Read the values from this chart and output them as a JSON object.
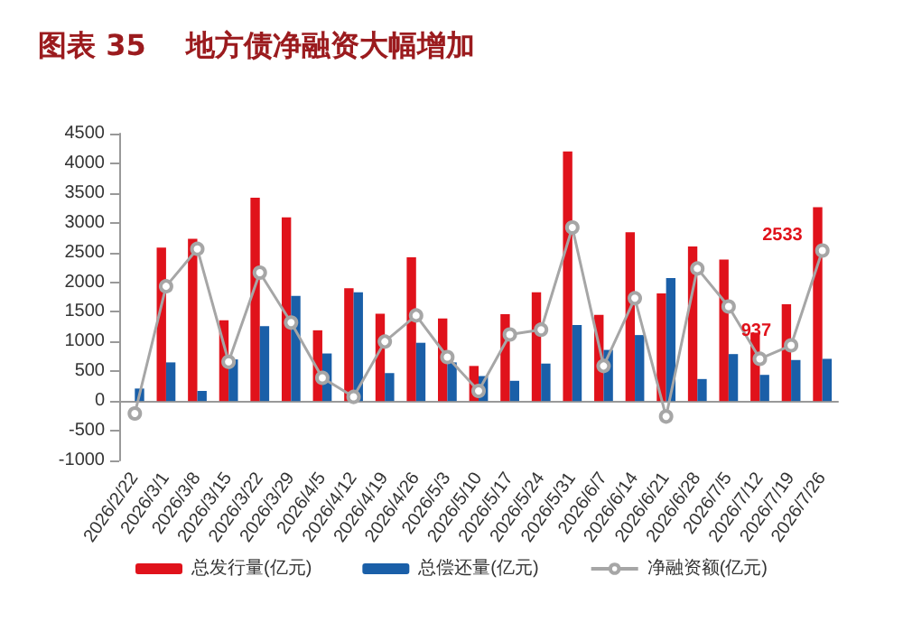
{
  "chart_data": {
    "type": "bar",
    "title": "图表 35    地方债净融资大幅增加",
    "categories": [
      "2026/2/22",
      "2026/3/1",
      "2026/3/8",
      "2026/3/15",
      "2026/3/22",
      "2026/3/29",
      "2026/4/5",
      "2026/4/12",
      "2026/4/19",
      "2026/4/26",
      "2026/5/3",
      "2026/5/10",
      "2026/5/17",
      "2026/5/24",
      "2026/5/31",
      "2026/6/7",
      "2026/6/14",
      "2026/6/21",
      "2026/6/28",
      "2026/7/5",
      "2026/7/12",
      "2026/7/19",
      "2026/7/26"
    ],
    "series": [
      {
        "name": "总发行量(亿元)",
        "color": "#e0121b",
        "values": [
          0,
          2580,
          2730,
          1360,
          3420,
          3090,
          1190,
          1900,
          1470,
          2420,
          1390,
          590,
          1460,
          1830,
          4200,
          1450,
          2840,
          1810,
          2600,
          2380,
          1150,
          1630,
          3260
        ]
      },
      {
        "name": "总偿还量(亿元)",
        "color": "#1a5fa8",
        "values": [
          210,
          650,
          170,
          700,
          1260,
          1770,
          800,
          1830,
          470,
          980,
          650,
          420,
          340,
          630,
          1280,
          860,
          1110,
          2070,
          370,
          790,
          440,
          690,
          710
        ]
      },
      {
        "name": "净融资额(亿元)",
        "type": "line",
        "color": "#a6a6a6",
        "marker": "circle",
        "values": [
          -210,
          1930,
          2560,
          660,
          2160,
          1320,
          390,
          70,
          1000,
          1440,
          740,
          170,
          1120,
          1200,
          2920,
          590,
          1730,
          -260,
          2230,
          1590,
          710,
          937,
          2533
        ],
        "value_labels": [
          null,
          null,
          null,
          null,
          null,
          null,
          null,
          null,
          null,
          null,
          null,
          null,
          null,
          null,
          null,
          null,
          null,
          null,
          null,
          null,
          null,
          "937",
          "2533"
        ]
      }
    ],
    "ylim": [
      -1000,
      4500
    ],
    "yticks": [
      -1000,
      -500,
      0,
      500,
      1000,
      1500,
      2000,
      2500,
      3000,
      3500,
      4000,
      4500
    ],
    "legend": "bottom"
  }
}
